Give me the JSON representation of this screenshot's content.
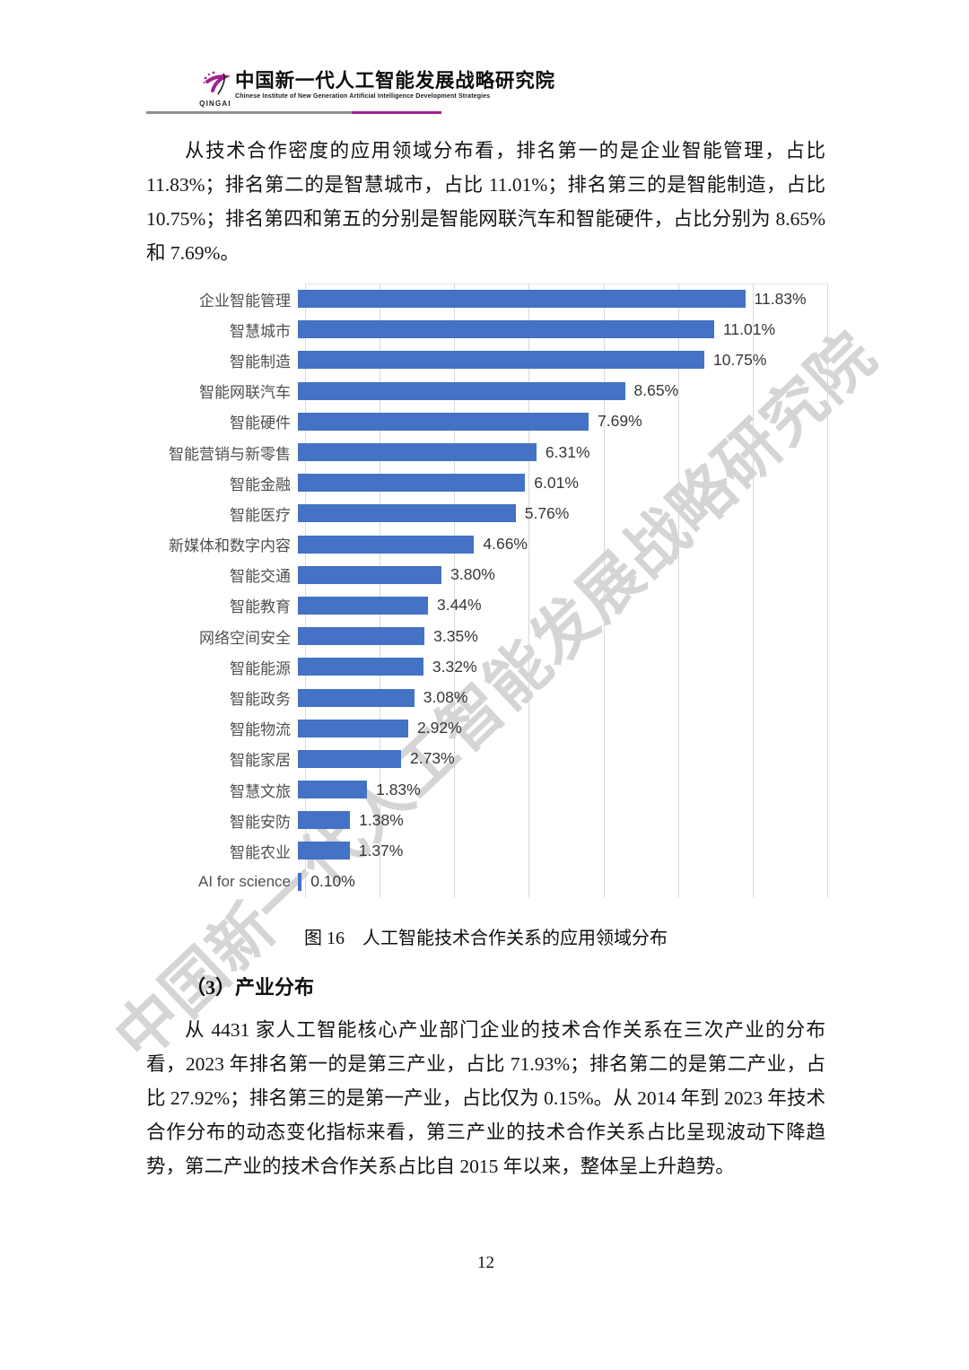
{
  "header": {
    "logo_acronym": "QINGAI",
    "org_name_zh": "中国新一代人工智能发展战略研究院",
    "org_name_en": "Chinese Institute of New Generation Artificial Intelligence Development Strategies",
    "rule_colors": {
      "left": "#8f8f8f",
      "right": "#a0208f"
    }
  },
  "watermark_text": "中国新一代人工智能发展战略研究院",
  "paragraph1": "从技术合作密度的应用领域分布看，排名第一的是企业智能管理，占比 11.83%；排名第二的是智慧城市，占比 11.01%；排名第三的是智能制造，占比 10.75%；排名第四和第五的分别是智能网联汽车和智能硬件，占比分别为 8.65%和 7.69%。",
  "chart_data": {
    "type": "bar",
    "orientation": "horizontal",
    "title": "",
    "xlabel": "",
    "ylabel": "",
    "categories": [
      "企业智能管理",
      "智慧城市",
      "智能制造",
      "智能网联汽车",
      "智能硬件",
      "智能营销与新零售",
      "智能金融",
      "智能医疗",
      "新媒体和数字内容",
      "智能交通",
      "智能教育",
      "网络空间安全",
      "智能能源",
      "智能政务",
      "智能物流",
      "智能家居",
      "智慧文旅",
      "智能安防",
      "智能农业",
      "AI for science"
    ],
    "values": [
      11.83,
      11.01,
      10.75,
      8.65,
      7.69,
      6.31,
      6.01,
      5.76,
      4.66,
      3.8,
      3.44,
      3.35,
      3.32,
      3.08,
      2.92,
      2.73,
      1.83,
      1.38,
      1.37,
      0.1
    ],
    "value_labels": [
      "11.83%",
      "11.01%",
      "10.75%",
      "8.65%",
      "7.69%",
      "6.31%",
      "6.01%",
      "5.76%",
      "4.66%",
      "3.80%",
      "3.44%",
      "3.35%",
      "3.32%",
      "3.08%",
      "2.92%",
      "2.73%",
      "1.83%",
      "1.38%",
      "1.37%",
      "0.10%"
    ],
    "xlim": [
      0,
      14
    ],
    "grid_step": 2,
    "grid": true,
    "legend": "none",
    "bar_color": "#4472C4",
    "grid_color": "#d8d8d8"
  },
  "figure_caption": "图 16　人工智能技术合作关系的应用领域分布",
  "section_heading": "（3）产业分布",
  "paragraph2": "从 4431 家人工智能核心产业部门企业的技术合作关系在三次产业的分布看，2023 年排名第一的是第三产业，占比 71.93%；排名第二的是第二产业，占比 27.92%；排名第三的是第一产业，占比仅为 0.15%。从 2014 年到 2023 年技术合作分布的动态变化指标来看，第三产业的技术合作关系占比呈现波动下降趋势，第二产业的技术合作关系占比自 2015 年以来，整体呈上升趋势。",
  "page_number": "12"
}
